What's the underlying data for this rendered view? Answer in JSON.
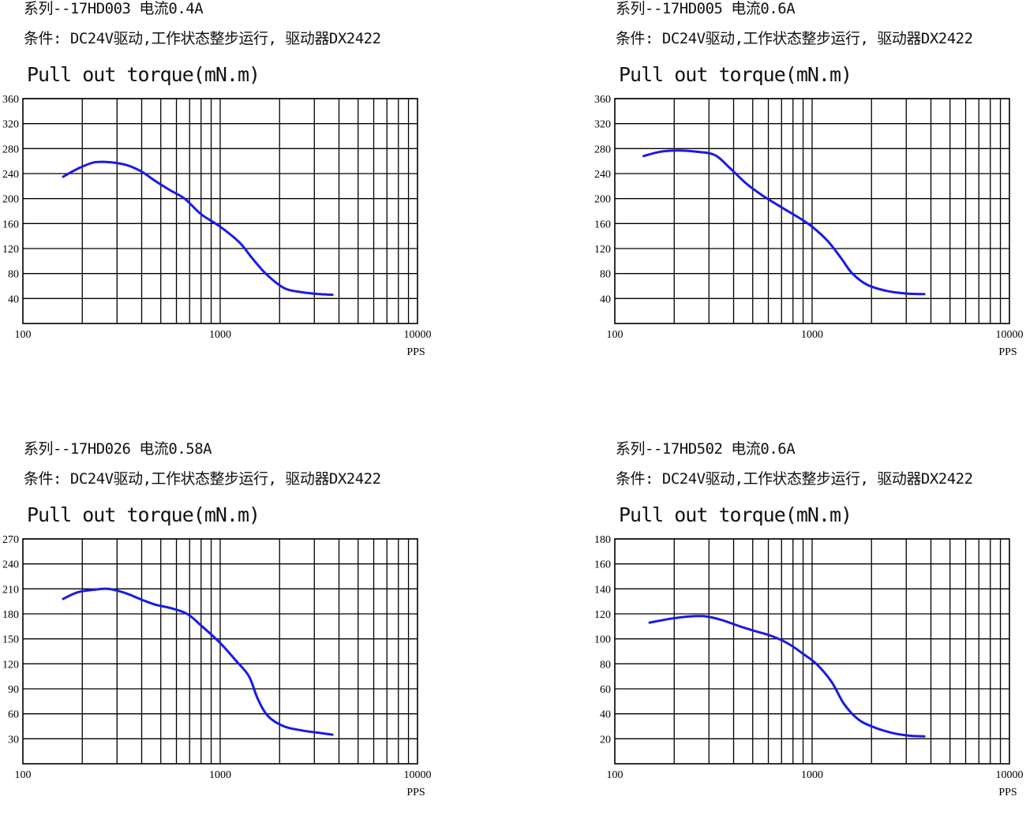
{
  "chart_data": [
    {
      "type": "line",
      "series_title": "系列--17HD003 电流0.4A",
      "condition": "条件: DC24V驱动,工作状态整步运行, 驱动器DX2422",
      "title": "Pull out torque(mN.m)",
      "xlabel": "PPS",
      "x_scale": "log",
      "xlim": [
        100,
        10000
      ],
      "x_ticks": [
        "100",
        "1000",
        "10000"
      ],
      "ylim": [
        0,
        360
      ],
      "y_ticks": [
        "360",
        "320",
        "280",
        "240",
        "200",
        "160",
        "120",
        "80",
        "40"
      ],
      "grid": true,
      "series": [
        {
          "color": "#1a1ae6",
          "x": [
            160,
            190,
            230,
            280,
            340,
            400,
            470,
            560,
            660,
            800,
            1000,
            1250,
            1450,
            1700,
            2100,
            2600,
            3200,
            3700
          ],
          "y": [
            235,
            248,
            258,
            258,
            253,
            243,
            228,
            213,
            200,
            175,
            155,
            130,
            105,
            80,
            57,
            50,
            47,
            46
          ]
        }
      ]
    },
    {
      "type": "line",
      "series_title": "系列--17HD005 电流0.6A",
      "condition": "条件: DC24V驱动,工作状态整步运行, 驱动器DX2422",
      "title": "Pull out torque(mN.m)",
      "xlabel": "PPS",
      "x_scale": "log",
      "xlim": [
        100,
        10000
      ],
      "x_ticks": [
        "100",
        "1000",
        "10000"
      ],
      "ylim": [
        0,
        360
      ],
      "y_ticks": [
        "360",
        "320",
        "280",
        "240",
        "200",
        "160",
        "120",
        "80",
        "40"
      ],
      "grid": true,
      "series": [
        {
          "color": "#1a1ae6",
          "x": [
            140,
            170,
            210,
            260,
            320,
            380,
            460,
            560,
            700,
            850,
            1000,
            1200,
            1400,
            1600,
            1900,
            2400,
            3000,
            3700
          ],
          "y": [
            268,
            275,
            277,
            275,
            270,
            250,
            225,
            205,
            186,
            170,
            155,
            132,
            105,
            80,
            62,
            52,
            48,
            47
          ]
        }
      ]
    },
    {
      "type": "line",
      "series_title": "系列--17HD026 电流0.58A",
      "condition": "条件: DC24V驱动,工作状态整步运行, 驱动器DX2422",
      "title": "Pull out torque(mN.m)",
      "xlabel": "PPS",
      "x_scale": "log",
      "xlim": [
        100,
        10000
      ],
      "x_ticks": [
        "100",
        "1000",
        "10000"
      ],
      "ylim": [
        0,
        270
      ],
      "y_ticks": [
        "270",
        "240",
        "210",
        "180",
        "150",
        "120",
        "90",
        "60",
        "30"
      ],
      "grid": true,
      "series": [
        {
          "color": "#1a1ae6",
          "x": [
            160,
            190,
            230,
            270,
            330,
            400,
            470,
            560,
            680,
            800,
            1000,
            1200,
            1400,
            1550,
            1750,
            2100,
            2600,
            3200,
            3700
          ],
          "y": [
            198,
            206,
            209,
            210,
            205,
            197,
            191,
            187,
            180,
            166,
            145,
            124,
            105,
            78,
            57,
            45,
            40,
            37,
            35
          ]
        }
      ]
    },
    {
      "type": "line",
      "series_title": "系列--17HD502 电流0.6A",
      "condition": "条件: DC24V驱动,工作状态整步运行, 驱动器DX2422",
      "title": "Pull out torque(mN.m)",
      "xlabel": "PPS",
      "x_scale": "log",
      "xlim": [
        100,
        10000
      ],
      "x_ticks": [
        "100",
        "1000",
        "10000"
      ],
      "ylim": [
        0,
        180
      ],
      "y_ticks": [
        "180",
        "160",
        "140",
        "120",
        "100",
        "80",
        "60",
        "40",
        "20"
      ],
      "grid": true,
      "series": [
        {
          "color": "#1a1ae6",
          "x": [
            150,
            190,
            240,
            290,
            350,
            430,
            520,
            630,
            760,
            900,
            1050,
            1250,
            1450,
            1700,
            2000,
            2500,
            3100,
            3700
          ],
          "y": [
            113,
            116,
            118,
            118,
            115,
            110,
            106,
            102,
            96,
            88,
            80,
            66,
            48,
            36,
            30,
            25,
            22.5,
            22
          ]
        }
      ]
    }
  ]
}
